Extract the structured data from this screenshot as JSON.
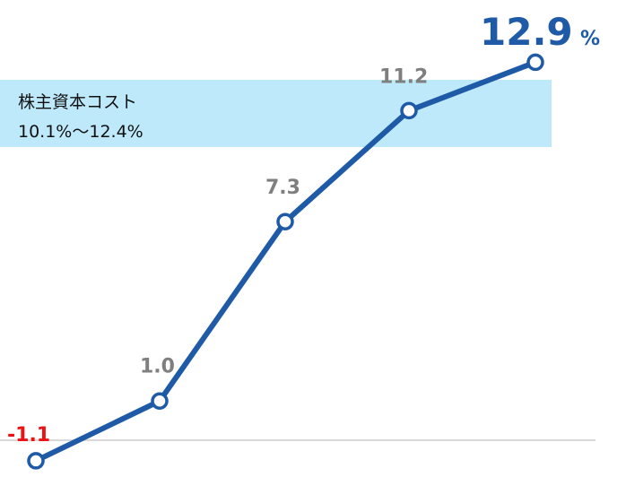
{
  "chart_data": {
    "type": "line",
    "x": [
      "1",
      "2",
      "3",
      "4",
      "5"
    ],
    "series": [
      {
        "values": [
          -1.1,
          1.0,
          7.3,
          11.2,
          12.9
        ],
        "color": "#1f5aa6",
        "value_labels": [
          "-1.1",
          "1.0",
          "7.3",
          "11.2",
          "12.9"
        ],
        "label_colors": [
          "#ee1111",
          "#7f7f7f",
          "#7f7f7f",
          "#7f7f7f",
          "#1f5aa6"
        ],
        "last_label_unit": "%"
      }
    ],
    "band": {
      "range": [
        10.1,
        12.4
      ],
      "label_line1": "株主資本コスト",
      "label_line2": "10.1%～12.4%",
      "color": "#bde9fb"
    },
    "baseline_value": -0.5,
    "baseline_color": "#d9d9d9",
    "grid": false,
    "legend": "none"
  }
}
